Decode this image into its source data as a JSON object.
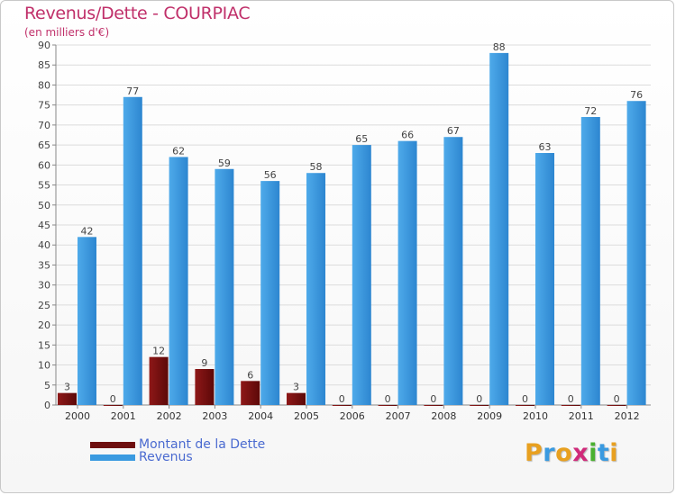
{
  "chart_data": {
    "type": "bar",
    "title": "Revenus/Dette - COURPIAC",
    "subtitle": "(en milliers d'€)",
    "categories": [
      "2000",
      "2001",
      "2002",
      "2003",
      "2004",
      "2005",
      "2006",
      "2007",
      "2008",
      "2009",
      "2010",
      "2011",
      "2012"
    ],
    "series": [
      {
        "name": "Montant de la Dette",
        "color": "#7a1010",
        "values": [
          3,
          0,
          12,
          9,
          6,
          3,
          0,
          0,
          0,
          0,
          0,
          0,
          0
        ]
      },
      {
        "name": "Revenus",
        "color": "#3a9ae0",
        "values": [
          42,
          77,
          62,
          59,
          56,
          58,
          65,
          66,
          67,
          88,
          63,
          72,
          76
        ]
      }
    ],
    "ylim": [
      0,
      90
    ],
    "yticks": [
      0,
      5,
      10,
      15,
      20,
      25,
      30,
      35,
      40,
      45,
      50,
      55,
      60,
      65,
      70,
      75,
      80,
      85,
      90
    ],
    "grid": true,
    "legend": "bottom-left"
  },
  "brand": {
    "letters": [
      "P",
      "r",
      "o",
      "x",
      "i",
      "t",
      "i"
    ],
    "colors": [
      "#e8a020",
      "#3a9ae0",
      "#e8a020",
      "#d02a7a",
      "#4ab030",
      "#3a9ae0",
      "#e8a020"
    ]
  }
}
